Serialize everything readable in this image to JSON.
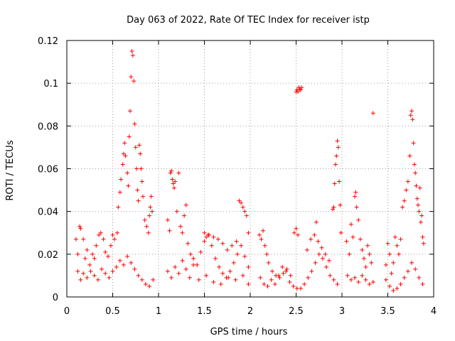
{
  "chart_data": {
    "type": "scatter",
    "title": "Day 063 of 2022, Rate Of TEC Index for receiver istp",
    "xlabel": "GPS time / hours",
    "ylabel": "ROTI / TECUs",
    "xlim": [
      0,
      4
    ],
    "ylim": [
      0,
      0.12
    ],
    "xticks": [
      0,
      0.5,
      1,
      1.5,
      2,
      2.5,
      3,
      3.5,
      4
    ],
    "xtick_labels": [
      "0",
      "0.5",
      "1",
      "1.5",
      "2",
      "2.5",
      "3",
      "3.5",
      "4"
    ],
    "yticks": [
      0,
      0.02,
      0.04,
      0.06,
      0.08,
      0.1,
      0.12
    ],
    "ytick_labels": [
      "0",
      "0.02",
      "0.04",
      "0.06",
      "0.08",
      "0.1",
      "0.12"
    ],
    "grid": true,
    "marker": "plus",
    "color": "#ff0000",
    "series": [
      {
        "name": "ROTI",
        "points": [
          [
            0.1,
            0.027
          ],
          [
            0.12,
            0.02
          ],
          [
            0.14,
            0.033
          ],
          [
            0.15,
            0.032
          ],
          [
            0.18,
            0.027
          ],
          [
            0.2,
            0.018
          ],
          [
            0.22,
            0.022
          ],
          [
            0.25,
            0.015
          ],
          [
            0.28,
            0.02
          ],
          [
            0.3,
            0.018
          ],
          [
            0.32,
            0.024
          ],
          [
            0.35,
            0.029
          ],
          [
            0.37,
            0.03
          ],
          [
            0.4,
            0.027
          ],
          [
            0.42,
            0.021
          ],
          [
            0.45,
            0.019
          ],
          [
            0.48,
            0.024
          ],
          [
            0.5,
            0.029
          ],
          [
            0.52,
            0.027
          ],
          [
            0.55,
            0.03
          ],
          [
            0.12,
            0.012
          ],
          [
            0.15,
            0.008
          ],
          [
            0.18,
            0.011
          ],
          [
            0.22,
            0.009
          ],
          [
            0.26,
            0.012
          ],
          [
            0.3,
            0.01
          ],
          [
            0.34,
            0.008
          ],
          [
            0.38,
            0.013
          ],
          [
            0.42,
            0.011
          ],
          [
            0.46,
            0.009
          ],
          [
            0.5,
            0.012
          ],
          [
            0.54,
            0.014
          ],
          [
            0.58,
            0.017
          ],
          [
            0.62,
            0.015
          ],
          [
            0.66,
            0.019
          ],
          [
            0.7,
            0.016
          ],
          [
            0.74,
            0.013
          ],
          [
            0.78,
            0.01
          ],
          [
            0.82,
            0.008
          ],
          [
            0.86,
            0.006
          ],
          [
            0.9,
            0.005
          ],
          [
            0.94,
            0.008
          ],
          [
            0.56,
            0.042
          ],
          [
            0.58,
            0.049
          ],
          [
            0.59,
            0.055
          ],
          [
            0.61,
            0.062
          ],
          [
            0.62,
            0.067
          ],
          [
            0.63,
            0.072
          ],
          [
            0.64,
            0.066
          ],
          [
            0.66,
            0.058
          ],
          [
            0.67,
            0.052
          ],
          [
            0.68,
            0.075
          ],
          [
            0.69,
            0.087
          ],
          [
            0.7,
            0.103
          ],
          [
            0.71,
            0.115
          ],
          [
            0.72,
            0.113
          ],
          [
            0.73,
            0.101
          ],
          [
            0.74,
            0.081
          ],
          [
            0.75,
            0.07
          ],
          [
            0.76,
            0.06
          ],
          [
            0.77,
            0.05
          ],
          [
            0.78,
            0.045
          ],
          [
            0.79,
            0.071
          ],
          [
            0.8,
            0.067
          ],
          [
            0.81,
            0.06
          ],
          [
            0.82,
            0.054
          ],
          [
            0.83,
            0.047
          ],
          [
            0.85,
            0.036
          ],
          [
            0.87,
            0.033
          ],
          [
            0.89,
            0.03
          ],
          [
            0.9,
            0.038
          ],
          [
            0.91,
            0.042
          ],
          [
            0.92,
            0.047
          ],
          [
            0.93,
            0.04
          ],
          [
            1.1,
            0.036
          ],
          [
            1.12,
            0.031
          ],
          [
            1.13,
            0.058
          ],
          [
            1.14,
            0.059
          ],
          [
            1.15,
            0.055
          ],
          [
            1.16,
            0.053
          ],
          [
            1.17,
            0.051
          ],
          [
            1.18,
            0.054
          ],
          [
            1.2,
            0.04
          ],
          [
            1.22,
            0.058
          ],
          [
            1.24,
            0.033
          ],
          [
            1.26,
            0.03
          ],
          [
            1.28,
            0.038
          ],
          [
            1.3,
            0.043
          ],
          [
            1.32,
            0.025
          ],
          [
            1.35,
            0.02
          ],
          [
            1.38,
            0.015
          ],
          [
            1.1,
            0.012
          ],
          [
            1.14,
            0.009
          ],
          [
            1.18,
            0.014
          ],
          [
            1.22,
            0.011
          ],
          [
            1.26,
            0.017
          ],
          [
            1.3,
            0.013
          ],
          [
            1.34,
            0.009
          ],
          [
            1.38,
            0.018
          ],
          [
            1.42,
            0.015
          ],
          [
            1.46,
            0.021
          ],
          [
            1.5,
            0.026
          ],
          [
            1.54,
            0.029
          ],
          [
            1.58,
            0.024
          ],
          [
            1.62,
            0.018
          ],
          [
            1.66,
            0.014
          ],
          [
            1.7,
            0.011
          ],
          [
            1.74,
            0.009
          ],
          [
            1.78,
            0.012
          ],
          [
            1.82,
            0.016
          ],
          [
            1.86,
            0.02
          ],
          [
            1.9,
            0.024
          ],
          [
            1.94,
            0.019
          ],
          [
            1.98,
            0.014
          ],
          [
            1.5,
            0.03
          ],
          [
            1.52,
            0.028
          ],
          [
            1.55,
            0.029
          ],
          [
            1.6,
            0.028
          ],
          [
            1.65,
            0.027
          ],
          [
            1.7,
            0.025
          ],
          [
            1.75,
            0.022
          ],
          [
            1.8,
            0.024
          ],
          [
            1.85,
            0.026
          ],
          [
            1.88,
            0.045
          ],
          [
            1.9,
            0.044
          ],
          [
            1.92,
            0.042
          ],
          [
            1.94,
            0.04
          ],
          [
            1.96,
            0.038
          ],
          [
            1.98,
            0.03
          ],
          [
            1.44,
            0.008
          ],
          [
            1.52,
            0.01
          ],
          [
            1.6,
            0.007
          ],
          [
            1.68,
            0.006
          ],
          [
            1.76,
            0.009
          ],
          [
            1.84,
            0.008
          ],
          [
            1.92,
            0.01
          ],
          [
            1.98,
            0.006
          ],
          [
            2.1,
            0.029
          ],
          [
            2.12,
            0.027
          ],
          [
            2.14,
            0.031
          ],
          [
            2.16,
            0.024
          ],
          [
            2.18,
            0.02
          ],
          [
            2.2,
            0.016
          ],
          [
            2.24,
            0.012
          ],
          [
            2.28,
            0.01
          ],
          [
            2.32,
            0.009
          ],
          [
            2.36,
            0.011
          ],
          [
            2.4,
            0.013
          ],
          [
            2.44,
            0.01
          ],
          [
            2.48,
            0.03
          ],
          [
            2.5,
            0.032
          ],
          [
            2.52,
            0.029
          ],
          [
            2.11,
            0.009
          ],
          [
            2.15,
            0.006
          ],
          [
            2.19,
            0.005
          ],
          [
            2.23,
            0.008
          ],
          [
            2.27,
            0.006
          ],
          [
            2.31,
            0.01
          ],
          [
            2.35,
            0.014
          ],
          [
            2.39,
            0.012
          ],
          [
            2.43,
            0.007
          ],
          [
            2.47,
            0.005
          ],
          [
            2.51,
            0.004
          ],
          [
            2.55,
            0.004
          ],
          [
            2.59,
            0.006
          ],
          [
            2.63,
            0.009
          ],
          [
            2.67,
            0.012
          ],
          [
            2.71,
            0.016
          ],
          [
            2.75,
            0.02
          ],
          [
            2.79,
            0.018
          ],
          [
            2.83,
            0.014
          ],
          [
            2.87,
            0.01
          ],
          [
            2.91,
            0.008
          ],
          [
            2.95,
            0.006
          ],
          [
            2.5,
            0.096
          ],
          [
            2.51,
            0.097
          ],
          [
            2.52,
            0.096
          ],
          [
            2.53,
            0.098
          ],
          [
            2.54,
            0.097
          ],
          [
            2.55,
            0.097
          ],
          [
            2.56,
            0.098
          ],
          [
            2.62,
            0.022
          ],
          [
            2.66,
            0.027
          ],
          [
            2.7,
            0.029
          ],
          [
            2.72,
            0.035
          ],
          [
            2.74,
            0.026
          ],
          [
            2.78,
            0.023
          ],
          [
            2.82,
            0.02
          ],
          [
            2.86,
            0.017
          ],
          [
            2.9,
            0.041
          ],
          [
            2.91,
            0.042
          ],
          [
            2.92,
            0.053
          ],
          [
            2.93,
            0.062
          ],
          [
            2.94,
            0.066
          ],
          [
            2.95,
            0.073
          ],
          [
            2.96,
            0.07
          ],
          [
            2.97,
            0.054
          ],
          [
            2.98,
            0.043
          ],
          [
            2.99,
            0.03
          ],
          [
            3.05,
            0.026
          ],
          [
            3.08,
            0.02
          ],
          [
            3.1,
            0.034
          ],
          [
            3.12,
            0.028
          ],
          [
            3.14,
            0.047
          ],
          [
            3.15,
            0.049
          ],
          [
            3.16,
            0.042
          ],
          [
            3.18,
            0.036
          ],
          [
            3.2,
            0.027
          ],
          [
            3.22,
            0.022
          ],
          [
            3.24,
            0.018
          ],
          [
            3.26,
            0.014
          ],
          [
            3.28,
            0.024
          ],
          [
            3.3,
            0.02
          ],
          [
            3.32,
            0.016
          ],
          [
            3.34,
            0.086
          ],
          [
            3.06,
            0.01
          ],
          [
            3.1,
            0.008
          ],
          [
            3.14,
            0.009
          ],
          [
            3.18,
            0.007
          ],
          [
            3.22,
            0.01
          ],
          [
            3.26,
            0.008
          ],
          [
            3.3,
            0.006
          ],
          [
            3.34,
            0.007
          ],
          [
            3.48,
            0.015
          ],
          [
            3.5,
            0.025
          ],
          [
            3.52,
            0.02
          ],
          [
            3.54,
            0.011
          ],
          [
            3.56,
            0.016
          ],
          [
            3.58,
            0.028
          ],
          [
            3.6,
            0.024
          ],
          [
            3.62,
            0.02
          ],
          [
            3.64,
            0.027
          ],
          [
            3.66,
            0.042
          ],
          [
            3.68,
            0.045
          ],
          [
            3.7,
            0.05
          ],
          [
            3.72,
            0.054
          ],
          [
            3.74,
            0.066
          ],
          [
            3.75,
            0.085
          ],
          [
            3.76,
            0.087
          ],
          [
            3.77,
            0.083
          ],
          [
            3.78,
            0.072
          ],
          [
            3.79,
            0.062
          ],
          [
            3.8,
            0.058
          ],
          [
            3.81,
            0.052
          ],
          [
            3.82,
            0.046
          ],
          [
            3.83,
            0.043
          ],
          [
            3.84,
            0.04
          ],
          [
            3.85,
            0.051
          ],
          [
            3.86,
            0.035
          ],
          [
            3.87,
            0.038
          ],
          [
            3.88,
            0.028
          ],
          [
            3.89,
            0.025
          ],
          [
            3.48,
            0.008
          ],
          [
            3.52,
            0.005
          ],
          [
            3.56,
            0.003
          ],
          [
            3.6,
            0.004
          ],
          [
            3.64,
            0.006
          ],
          [
            3.68,
            0.009
          ],
          [
            3.72,
            0.012
          ],
          [
            3.76,
            0.016
          ],
          [
            3.8,
            0.013
          ],
          [
            3.84,
            0.009
          ],
          [
            3.88,
            0.006
          ]
        ]
      }
    ]
  }
}
